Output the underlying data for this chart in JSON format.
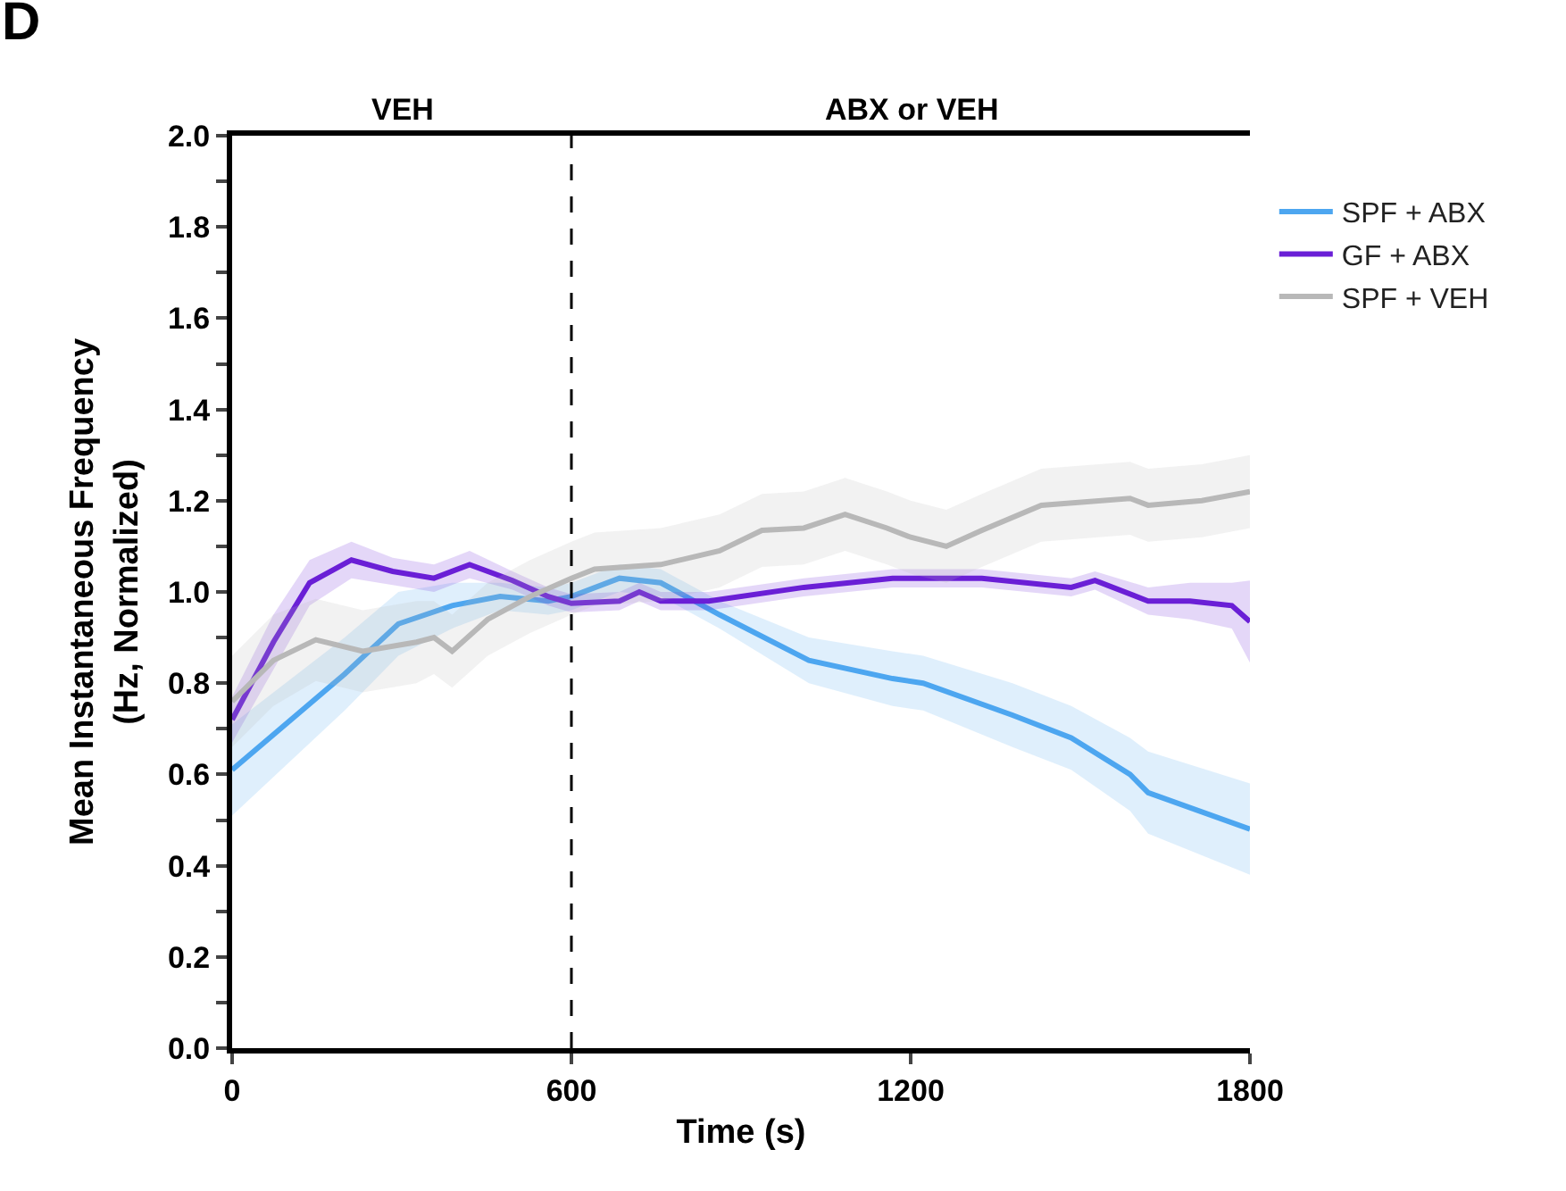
{
  "chart_data": {
    "type": "line",
    "annotations": [
      "D",
      "VEH",
      "ABX or VEH"
    ],
    "xlabel": "Time (s)",
    "ylabel": "Mean Instantaneous Frequency\n(Hz, Normalized)",
    "xlim": [
      0,
      1800
    ],
    "xticks": [
      0,
      600,
      1200,
      1800
    ],
    "ylim": [
      0,
      2
    ],
    "yticks": [
      {
        "value": 0,
        "label": "0.0"
      },
      {
        "value": 0.1,
        "label": null
      },
      {
        "value": 0.2,
        "label": "0.2"
      },
      {
        "value": 0.3,
        "label": null
      },
      {
        "value": 0.4,
        "label": "0.4"
      },
      {
        "value": 0.5,
        "label": null
      },
      {
        "value": 0.6,
        "label": "0.6"
      },
      {
        "value": 0.7,
        "label": null
      },
      {
        "value": 0.8,
        "label": "0.8"
      },
      {
        "value": 0.9,
        "label": null
      },
      {
        "value": 1,
        "label": "1.0"
      },
      {
        "value": 1.1,
        "label": null
      },
      {
        "value": 1.2,
        "label": "1.2"
      },
      {
        "value": 1.3,
        "label": null
      },
      {
        "value": 1.4,
        "label": "1.4"
      },
      {
        "value": 1.5,
        "label": null
      },
      {
        "value": 1.6,
        "label": "1.6"
      },
      {
        "value": 1.7,
        "label": null
      },
      {
        "value": 1.8,
        "label": "1.8"
      },
      {
        "value": 1.9,
        "label": null
      },
      {
        "value": 2,
        "label": "2.0"
      }
    ],
    "grid": false,
    "legend": "top right",
    "marker": "none",
    "line_style": "solid",
    "ref_lines": [
      {
        "axis": "x",
        "value": 600,
        "line_style": "dashed"
      }
    ],
    "series": [
      {
        "name": "SPF + ABX",
        "color": "#4da6f0",
        "x": [
          0,
          199,
          294,
          389,
          474,
          559,
          600,
          685,
          758,
          862,
          1020,
          1168,
          1222,
          1380,
          1484,
          1588,
          1620,
          1800
        ],
        "values": [
          0.61,
          0.82,
          0.93,
          0.97,
          0.99,
          0.98,
          0.99,
          1.03,
          1.02,
          0.95,
          0.85,
          0.81,
          0.8,
          0.73,
          0.68,
          0.6,
          0.56,
          0.48
        ],
        "lower": [
          0.51,
          0.74,
          0.86,
          0.92,
          0.96,
          0.95,
          0.96,
          1.0,
          0.99,
          0.92,
          0.8,
          0.75,
          0.74,
          0.66,
          0.61,
          0.52,
          0.47,
          0.38
        ],
        "upper": [
          0.71,
          0.9,
          1.0,
          1.02,
          1.02,
          1.01,
          1.02,
          1.06,
          1.05,
          0.98,
          0.9,
          0.87,
          0.86,
          0.8,
          0.75,
          0.68,
          0.65,
          0.58
        ]
      },
      {
        "name": "GF + ABX",
        "color": "#6a1fd6",
        "x": [
          0,
          73,
          137,
          211,
          284,
          357,
          420,
          496,
          559,
          600,
          685,
          720,
          758,
          843,
          1011,
          1168,
          1326,
          1484,
          1526,
          1620,
          1694,
          1768,
          1800
        ],
        "values": [
          0.72,
          0.89,
          1.02,
          1.07,
          1.045,
          1.03,
          1.06,
          1.025,
          0.99,
          0.975,
          0.98,
          1.0,
          0.98,
          0.98,
          1.01,
          1.03,
          1.03,
          1.01,
          1.025,
          0.98,
          0.98,
          0.97,
          0.935
        ],
        "lower": [
          0.67,
          0.83,
          0.97,
          1.03,
          1.015,
          1.0,
          1.03,
          1.005,
          0.97,
          0.955,
          0.96,
          0.98,
          0.96,
          0.96,
          0.99,
          1.01,
          1.01,
          0.99,
          1.005,
          0.95,
          0.94,
          0.92,
          0.845
        ],
        "upper": [
          0.77,
          0.95,
          1.07,
          1.11,
          1.075,
          1.06,
          1.09,
          1.045,
          1.01,
          0.995,
          1.0,
          1.02,
          1.0,
          1.0,
          1.03,
          1.05,
          1.05,
          1.03,
          1.045,
          1.01,
          1.02,
          1.02,
          1.025
        ]
      },
      {
        "name": "SPF + VEH",
        "color": "#b8b8b8",
        "x": [
          0,
          73,
          148,
          231,
          326,
          357,
          389,
          452,
          527,
          600,
          641,
          758,
          862,
          937,
          1011,
          1084,
          1158,
          1200,
          1263,
          1326,
          1431,
          1588,
          1620,
          1715,
          1800
        ],
        "values": [
          0.76,
          0.85,
          0.895,
          0.87,
          0.89,
          0.9,
          0.87,
          0.94,
          0.99,
          1.03,
          1.05,
          1.06,
          1.09,
          1.135,
          1.14,
          1.17,
          1.14,
          1.12,
          1.1,
          1.135,
          1.19,
          1.205,
          1.19,
          1.2,
          1.22
        ],
        "lower": [
          0.66,
          0.75,
          0.805,
          0.78,
          0.8,
          0.82,
          0.79,
          0.86,
          0.91,
          0.95,
          0.97,
          0.98,
          1.01,
          1.055,
          1.06,
          1.09,
          1.06,
          1.04,
          1.02,
          1.055,
          1.11,
          1.125,
          1.11,
          1.12,
          1.14
        ],
        "upper": [
          0.86,
          0.95,
          0.985,
          0.96,
          0.98,
          0.98,
          0.95,
          1.02,
          1.07,
          1.11,
          1.13,
          1.14,
          1.17,
          1.215,
          1.22,
          1.25,
          1.22,
          1.2,
          1.18,
          1.215,
          1.27,
          1.285,
          1.27,
          1.28,
          1.3
        ]
      }
    ]
  }
}
